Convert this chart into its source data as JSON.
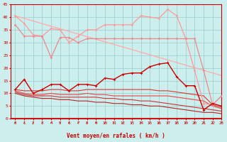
{
  "xlabel": "Vent moyen/en rafales ( km/h )",
  "xlim": [
    -0.5,
    23
  ],
  "ylim": [
    0,
    45
  ],
  "yticks": [
    0,
    5,
    10,
    15,
    20,
    25,
    30,
    35,
    40,
    45
  ],
  "xticks": [
    0,
    1,
    2,
    3,
    4,
    5,
    6,
    7,
    8,
    9,
    10,
    11,
    12,
    13,
    14,
    15,
    16,
    17,
    18,
    19,
    20,
    21,
    22,
    23
  ],
  "bg_color": "#cceeed",
  "grid_color": "#99cccc",
  "series": [
    {
      "x": [
        0,
        1,
        2,
        3,
        4,
        5,
        6,
        7,
        8,
        9,
        10,
        11,
        12,
        13,
        14,
        15,
        16,
        17,
        18,
        19,
        20,
        21,
        22,
        23
      ],
      "y": [
        40.5,
        37.5,
        33,
        32.5,
        35.5,
        35,
        30,
        32.5,
        35,
        35,
        37,
        37,
        37,
        37,
        40.5,
        40,
        39.5,
        43,
        40.5,
        31.5,
        19,
        6,
        5.5,
        9
      ],
      "color": "#ff9999",
      "lw": 0.9,
      "marker": "o",
      "ms": 2.0,
      "zorder": 3
    },
    {
      "x": [
        0,
        23
      ],
      "y": [
        40.5,
        17
      ],
      "color": "#ffaaaa",
      "lw": 0.9,
      "marker": null,
      "ms": 0,
      "zorder": 2
    },
    {
      "x": [
        0,
        1,
        2,
        3,
        4,
        5,
        6,
        7,
        8,
        9,
        10,
        11,
        12,
        13,
        14,
        15,
        16,
        17,
        18,
        19,
        20,
        21,
        22,
        23
      ],
      "y": [
        37,
        32.5,
        32.5,
        32.5,
        24,
        32,
        32,
        30,
        31.5,
        31.5,
        31.5,
        31.5,
        31.5,
        31.5,
        31.5,
        31.5,
        31.5,
        31.5,
        31.5,
        31.5,
        31.5,
        19,
        5.5,
        9
      ],
      "color": "#ee8888",
      "lw": 0.9,
      "marker": "o",
      "ms": 2.0,
      "zorder": 3
    },
    {
      "x": [
        0,
        1,
        2,
        3,
        4,
        5,
        6,
        7,
        8,
        9,
        10,
        11,
        12,
        13,
        14,
        15,
        16,
        17,
        18,
        19,
        20,
        21,
        22,
        23
      ],
      "y": [
        11.5,
        15.5,
        10,
        11.5,
        13.5,
        13.5,
        11,
        13.5,
        13.5,
        13,
        16,
        15.5,
        17.5,
        18,
        18,
        20.5,
        21.5,
        22,
        16.5,
        13,
        13,
        3.5,
        6,
        5
      ],
      "color": "#cc0000",
      "lw": 1.0,
      "marker": "P",
      "ms": 2.5,
      "zorder": 4
    },
    {
      "x": [
        0,
        1,
        2,
        3,
        4,
        5,
        6,
        7,
        8,
        9,
        10,
        11,
        12,
        13,
        14,
        15,
        16,
        17,
        18,
        19,
        20,
        21,
        22,
        23
      ],
      "y": [
        11.5,
        11.0,
        11.0,
        11.0,
        11.5,
        11.5,
        11.0,
        11.0,
        11.5,
        11.5,
        11.5,
        11.5,
        11.5,
        11.5,
        11.5,
        11.5,
        11.0,
        11.0,
        10.5,
        10.0,
        9.5,
        9.0,
        5.5,
        4.5
      ],
      "color": "#dd3333",
      "lw": 0.8,
      "marker": null,
      "ms": 0,
      "zorder": 2
    },
    {
      "x": [
        0,
        1,
        2,
        3,
        4,
        5,
        6,
        7,
        8,
        9,
        10,
        11,
        12,
        13,
        14,
        15,
        16,
        17,
        18,
        19,
        20,
        21,
        22,
        23
      ],
      "y": [
        11.0,
        10.0,
        9.5,
        9.5,
        10.0,
        9.5,
        9.5,
        9.5,
        10.0,
        9.5,
        9.5,
        9.0,
        9.0,
        9.0,
        9.0,
        9.0,
        9.0,
        9.0,
        8.5,
        8.0,
        7.5,
        7.0,
        5.0,
        4.0
      ],
      "color": "#ee4444",
      "lw": 0.8,
      "marker": null,
      "ms": 0,
      "zorder": 2
    },
    {
      "x": [
        0,
        1,
        2,
        3,
        4,
        5,
        6,
        7,
        8,
        9,
        10,
        11,
        12,
        13,
        14,
        15,
        16,
        17,
        18,
        19,
        20,
        21,
        22,
        23
      ],
      "y": [
        10.5,
        9.5,
        9.0,
        9.0,
        9.0,
        8.5,
        8.5,
        8.5,
        8.5,
        8.5,
        8.0,
        8.0,
        7.5,
        7.5,
        7.0,
        7.0,
        6.5,
        6.0,
        5.5,
        5.0,
        4.5,
        4.0,
        3.5,
        3.0
      ],
      "color": "#cc3333",
      "lw": 0.8,
      "marker": null,
      "ms": 0,
      "zorder": 2
    },
    {
      "x": [
        0,
        1,
        2,
        3,
        4,
        5,
        6,
        7,
        8,
        9,
        10,
        11,
        12,
        13,
        14,
        15,
        16,
        17,
        18,
        19,
        20,
        21,
        22,
        23
      ],
      "y": [
        10.0,
        9.0,
        8.5,
        8.0,
        8.0,
        7.5,
        7.5,
        7.0,
        7.0,
        6.5,
        6.5,
        6.0,
        6.0,
        5.5,
        5.5,
        5.0,
        5.0,
        4.5,
        4.0,
        3.5,
        3.0,
        2.5,
        2.5,
        2.0
      ],
      "color": "#bb2222",
      "lw": 0.8,
      "marker": null,
      "ms": 0,
      "zorder": 2
    }
  ],
  "tick_color": "#cc0000",
  "spine_color": "#cc0000",
  "label_color": "#cc0000"
}
